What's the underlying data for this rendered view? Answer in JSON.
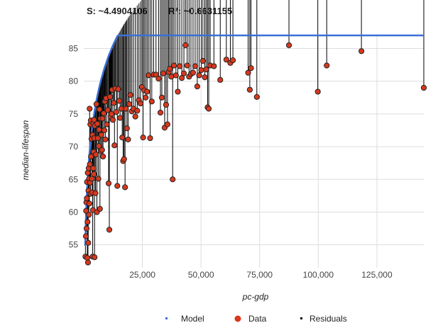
{
  "stats": {
    "s_text": "S: ~4.4904106",
    "r2_text": "R²: ~0.6631155"
  },
  "chart_data": {
    "type": "scatter",
    "xlabel": "pc-gdp",
    "ylabel": "median-lifespan",
    "xlim": [
      0,
      145000
    ],
    "ylim": [
      51.5,
      87
    ],
    "x_ticks": [
      25000,
      50000,
      75000,
      100000,
      125000
    ],
    "x_tick_labels": [
      "25,000",
      "50,000",
      "75,000",
      "100,000",
      "125,000"
    ],
    "y_ticks": [
      55,
      60,
      65,
      70,
      75,
      80,
      85
    ],
    "y_tick_labels": [
      "55",
      "60",
      "65",
      "70",
      "75",
      "80",
      "85"
    ],
    "grid": true,
    "legend_position": "bottom",
    "legend": [
      "Model",
      "Data",
      "Residuals"
    ],
    "colors": {
      "model": "#3b6fd6",
      "data": "#d9381e",
      "data_outline": "#222222",
      "residual": "#000000",
      "grid": "#dddddd"
    },
    "model": {
      "form": "logarithmic",
      "a": 10.1,
      "b": 6.8
    },
    "points": [
      [
        700,
        53.2
      ],
      [
        900,
        56.3
      ],
      [
        1000,
        60.2
      ],
      [
        1100,
        61.5
      ],
      [
        1200,
        57.5
      ],
      [
        1300,
        62.1
      ],
      [
        1400,
        64.6
      ],
      [
        1500,
        53.0
      ],
      [
        1600,
        58.5
      ],
      [
        1700,
        66.0
      ],
      [
        1800,
        52.3
      ],
      [
        1900,
        55.3
      ],
      [
        2000,
        63.3
      ],
      [
        2100,
        66.7
      ],
      [
        2200,
        59.6
      ],
      [
        2300,
        65.1
      ],
      [
        2400,
        61.3
      ],
      [
        2500,
        75.8
      ],
      [
        2600,
        67.3
      ],
      [
        2700,
        64.5
      ],
      [
        2800,
        73.4
      ],
      [
        2900,
        62.8
      ],
      [
        3000,
        74.0
      ],
      [
        3100,
        68.5
      ],
      [
        3300,
        71.2
      ],
      [
        3500,
        65.1
      ],
      [
        3600,
        63.0
      ],
      [
        3700,
        71.8
      ],
      [
        3800,
        53.2
      ],
      [
        3900,
        60.3
      ],
      [
        4000,
        66.7
      ],
      [
        4100,
        73.6
      ],
      [
        4200,
        69.2
      ],
      [
        4300,
        65.8
      ],
      [
        4400,
        74.1
      ],
      [
        4500,
        71.3
      ],
      [
        4600,
        53.1
      ],
      [
        4700,
        73.2
      ],
      [
        5000,
        62.9
      ],
      [
        5200,
        68.8
      ],
      [
        5400,
        76.5
      ],
      [
        5600,
        60.0
      ],
      [
        5800,
        73.5
      ],
      [
        6000,
        71.3
      ],
      [
        6200,
        65.1
      ],
      [
        6400,
        70.1
      ],
      [
        6500,
        72.6
      ],
      [
        6700,
        75.7
      ],
      [
        6900,
        60.5
      ],
      [
        7100,
        74.3
      ],
      [
        7300,
        69.3
      ],
      [
        7500,
        71.8
      ],
      [
        7800,
        69.5
      ],
      [
        8000,
        74.3
      ],
      [
        8200,
        68.5
      ],
      [
        8500,
        75.1
      ],
      [
        8800,
        72.5
      ],
      [
        9000,
        76.9
      ],
      [
        9200,
        71.1
      ],
      [
        9500,
        77.4
      ],
      [
        9800,
        73.4
      ],
      [
        10200,
        75.6
      ],
      [
        10600,
        64.4
      ],
      [
        10900,
        57.3
      ],
      [
        11200,
        77.6
      ],
      [
        11500,
        74.6
      ],
      [
        11800,
        75.0
      ],
      [
        12100,
        78.7
      ],
      [
        12400,
        74.1
      ],
      [
        12800,
        76.7
      ],
      [
        13100,
        70.2
      ],
      [
        13500,
        78.9
      ],
      [
        13900,
        75.3
      ],
      [
        14300,
        64.0
      ],
      [
        14700,
        78.8
      ],
      [
        15100,
        77.0
      ],
      [
        15500,
        74.4
      ],
      [
        16000,
        75.8
      ],
      [
        16400,
        71.4
      ],
      [
        16800,
        67.8
      ],
      [
        17200,
        68.1
      ],
      [
        17600,
        63.8
      ],
      [
        18000,
        75.8
      ],
      [
        18400,
        72.8
      ],
      [
        18900,
        71.1
      ],
      [
        19400,
        76.5
      ],
      [
        19900,
        77.9
      ],
      [
        20500,
        75.4
      ],
      [
        21200,
        75.8
      ],
      [
        22000,
        74.6
      ],
      [
        22800,
        75.5
      ],
      [
        23500,
        77.1
      ],
      [
        24200,
        76.6
      ],
      [
        24800,
        79.1
      ],
      [
        25300,
        71.4
      ],
      [
        25800,
        78.6
      ],
      [
        26400,
        77.5
      ],
      [
        27000,
        78.4
      ],
      [
        27600,
        80.9
      ],
      [
        28300,
        71.3
      ],
      [
        29000,
        76.9
      ],
      [
        29800,
        81.0
      ],
      [
        30800,
        81.0
      ],
      [
        31900,
        80.4
      ],
      [
        32700,
        75.2
      ],
      [
        33300,
        77.5
      ],
      [
        33900,
        81.2
      ],
      [
        34500,
        72.9
      ],
      [
        35100,
        76.4
      ],
      [
        35700,
        73.4
      ],
      [
        36200,
        81.4
      ],
      [
        36700,
        81.9
      ],
      [
        37300,
        80.7
      ],
      [
        37900,
        65.0
      ],
      [
        38500,
        82.4
      ],
      [
        39300,
        80.9
      ],
      [
        40100,
        78.4
      ],
      [
        40900,
        82.3
      ],
      [
        41800,
        80.5
      ],
      [
        42700,
        81.2
      ],
      [
        43400,
        85.5
      ],
      [
        44100,
        82.4
      ],
      [
        44900,
        80.7
      ],
      [
        45700,
        81.1
      ],
      [
        46600,
        81.3
      ],
      [
        47500,
        82.3
      ],
      [
        48400,
        79.2
      ],
      [
        49200,
        80.9
      ],
      [
        50100,
        81.7
      ],
      [
        50800,
        83.1
      ],
      [
        51600,
        80.6
      ],
      [
        52200,
        81.8
      ],
      [
        52800,
        76.0
      ],
      [
        53300,
        75.8
      ],
      [
        53900,
        82.4
      ],
      [
        55500,
        82.3
      ],
      [
        58200,
        80.2
      ],
      [
        60800,
        83.3
      ],
      [
        62500,
        82.8
      ],
      [
        63600,
        83.2
      ],
      [
        70100,
        81.3
      ],
      [
        70800,
        78.7
      ],
      [
        71300,
        82.0
      ],
      [
        73800,
        77.6
      ],
      [
        87500,
        85.5
      ],
      [
        99800,
        78.4
      ],
      [
        103600,
        82.4
      ],
      [
        118400,
        84.6
      ],
      [
        145000,
        79.0
      ]
    ]
  }
}
